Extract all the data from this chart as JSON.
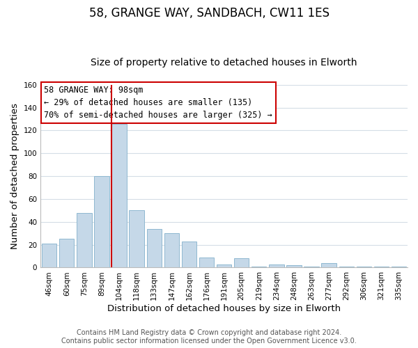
{
  "title": "58, GRANGE WAY, SANDBACH, CW11 1ES",
  "subtitle": "Size of property relative to detached houses in Elworth",
  "xlabel": "Distribution of detached houses by size in Elworth",
  "ylabel": "Number of detached properties",
  "bar_labels": [
    "46sqm",
    "60sqm",
    "75sqm",
    "89sqm",
    "104sqm",
    "118sqm",
    "133sqm",
    "147sqm",
    "162sqm",
    "176sqm",
    "191sqm",
    "205sqm",
    "219sqm",
    "234sqm",
    "248sqm",
    "263sqm",
    "277sqm",
    "292sqm",
    "306sqm",
    "321sqm",
    "335sqm"
  ],
  "bar_heights": [
    21,
    25,
    48,
    80,
    126,
    50,
    34,
    30,
    23,
    9,
    3,
    8,
    1,
    3,
    2,
    1,
    4,
    1,
    1,
    1,
    1
  ],
  "bar_color": "#c5d8e8",
  "bar_edge_color": "#8fb8d0",
  "vline_color": "#cc0000",
  "vline_index": 4,
  "ylim": [
    0,
    160
  ],
  "yticks": [
    0,
    20,
    40,
    60,
    80,
    100,
    120,
    140,
    160
  ],
  "annotation_title": "58 GRANGE WAY: 98sqm",
  "annotation_line1": "← 29% of detached houses are smaller (135)",
  "annotation_line2": "70% of semi-detached houses are larger (325) →",
  "annotation_box_color": "#ffffff",
  "annotation_box_edge": "#cc0000",
  "footer_line1": "Contains HM Land Registry data © Crown copyright and database right 2024.",
  "footer_line2": "Contains public sector information licensed under the Open Government Licence v3.0.",
  "background_color": "#ffffff",
  "grid_color": "#d4dde6",
  "title_fontsize": 12,
  "subtitle_fontsize": 10,
  "axis_label_fontsize": 9.5,
  "tick_fontsize": 7.5,
  "annotation_fontsize": 8.5,
  "footer_fontsize": 7
}
